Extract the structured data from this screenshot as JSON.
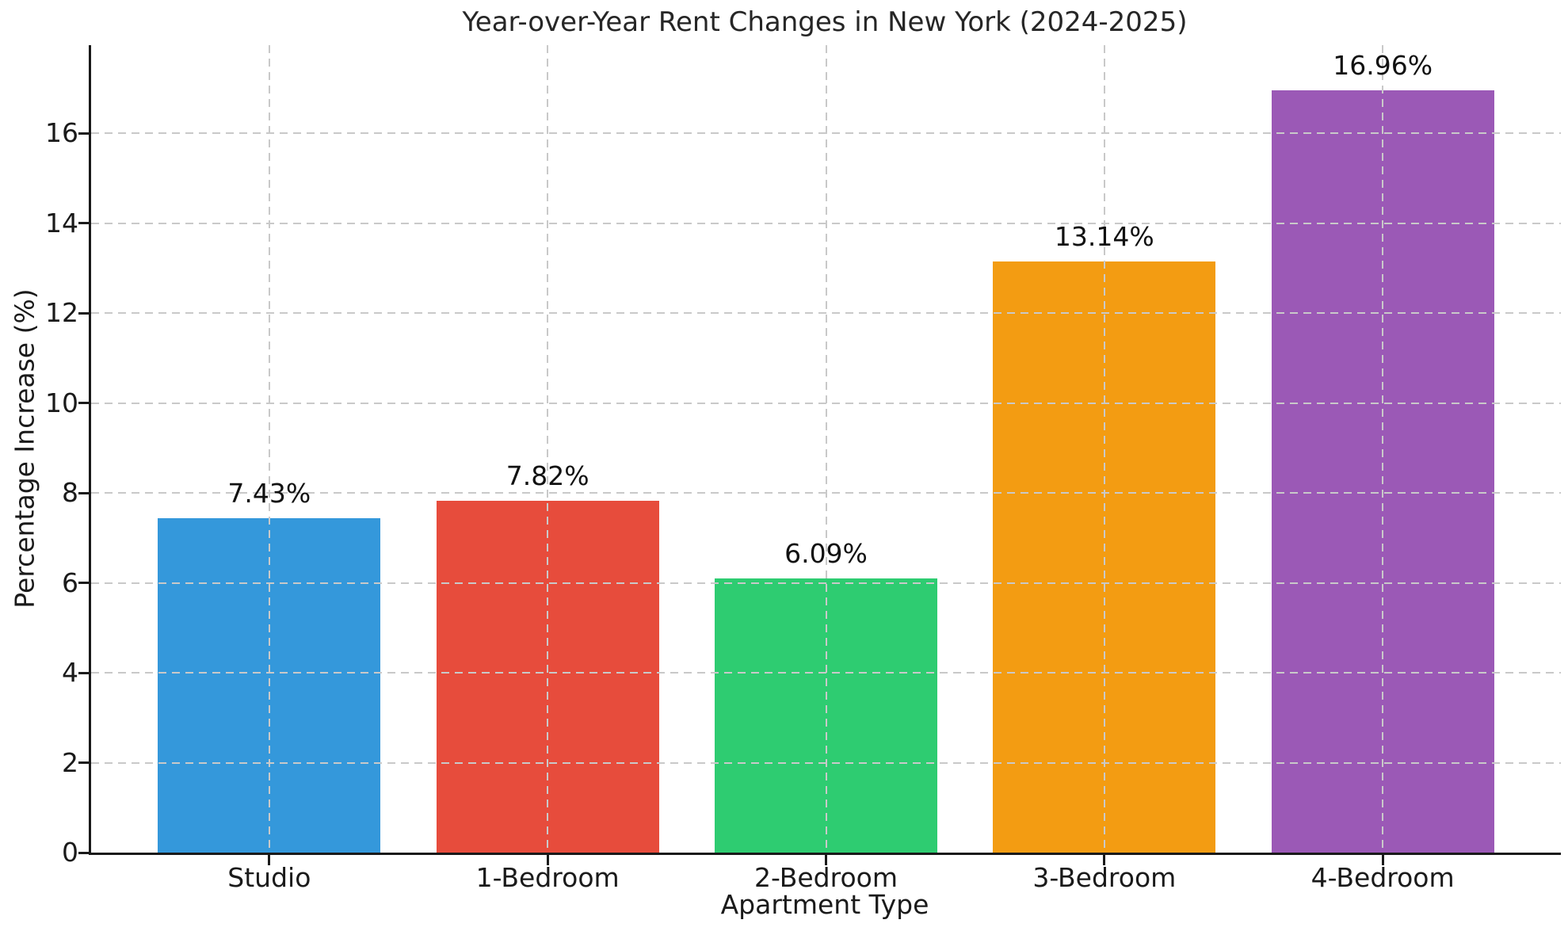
{
  "chart_data": {
    "type": "bar",
    "title": "Year-over-Year Rent Changes in New York (2024-2025)",
    "xlabel": "Apartment Type",
    "ylabel": "Percentage Increase (%)",
    "categories": [
      "Studio",
      "1-Bedroom",
      "2-Bedroom",
      "3-Bedroom",
      "4-Bedroom"
    ],
    "values": [
      7.43,
      7.82,
      6.09,
      13.14,
      16.96
    ],
    "bar_labels": [
      "7.43%",
      "7.82%",
      "6.09%",
      "13.14%",
      "16.96%"
    ],
    "bar_colors": [
      "#3498db",
      "#e74c3c",
      "#2ecc71",
      "#f39c12",
      "#9b59b6"
    ],
    "yticks": [
      0,
      2,
      4,
      6,
      8,
      10,
      12,
      14,
      16
    ],
    "ylim": [
      0,
      17.96
    ],
    "xlim_pad_units": 0.64,
    "bar_width_units": 0.8,
    "grid": {
      "axes": "both",
      "style": "dashed",
      "color": "#c9c9c9",
      "above_bars": true
    },
    "legend": "none",
    "axis_color": "#1a1a1a",
    "background": "#ffffff"
  }
}
